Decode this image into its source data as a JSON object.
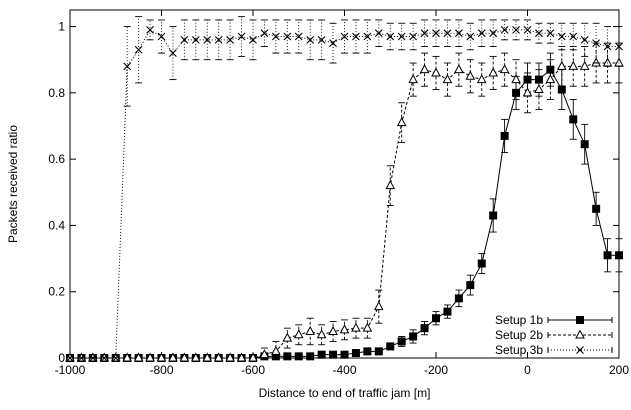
{
  "chart_data": {
    "type": "line",
    "title": "",
    "xlabel": "Distance to end of traffic jam [m]",
    "ylabel": "Packets received ratio",
    "xlim": [
      -1000,
      200
    ],
    "ylim": [
      0,
      1.05
    ],
    "xticks": [
      -1000,
      -800,
      -600,
      -400,
      -200,
      0,
      200
    ],
    "xtick_labels": [
      "-1000",
      "-800",
      "-600",
      "-400",
      "-200",
      "0",
      "200"
    ],
    "yticks": [
      0,
      0.2,
      0.4,
      0.6,
      0.8,
      1
    ],
    "ytick_labels": [
      "0",
      "0.2",
      "0.4",
      "0.6",
      "0.8",
      "1"
    ],
    "grid": false,
    "legend_position": "bottom-right",
    "series": [
      {
        "name": "Setup 1b",
        "marker": "filled-square",
        "line_style": "solid",
        "x": [
          -1000,
          -975,
          -950,
          -925,
          -900,
          -875,
          -850,
          -825,
          -800,
          -775,
          -750,
          -725,
          -700,
          -675,
          -650,
          -625,
          -600,
          -575,
          -550,
          -525,
          -500,
          -475,
          -450,
          -425,
          -400,
          -375,
          -350,
          -325,
          -300,
          -275,
          -250,
          -225,
          -200,
          -175,
          -150,
          -125,
          -100,
          -75,
          -50,
          -25,
          0,
          25,
          50,
          75,
          100,
          125,
          150,
          175,
          200
        ],
        "y": [
          0,
          0,
          0,
          0,
          0,
          0,
          0,
          0,
          0,
          0,
          0,
          0,
          0,
          0,
          0,
          0,
          0,
          0.005,
          0.005,
          0.005,
          0.005,
          0.005,
          0.01,
          0.01,
          0.01,
          0.015,
          0.02,
          0.02,
          0.035,
          0.05,
          0.065,
          0.09,
          0.12,
          0.14,
          0.18,
          0.22,
          0.285,
          0.43,
          0.67,
          0.8,
          0.84,
          0.84,
          0.87,
          0.81,
          0.72,
          0.645,
          0.45,
          0.31,
          0.31
        ],
        "err": [
          0,
          0,
          0,
          0,
          0,
          0,
          0,
          0,
          0,
          0,
          0,
          0,
          0,
          0,
          0,
          0,
          0,
          0.005,
          0.005,
          0.005,
          0.005,
          0.005,
          0.005,
          0.005,
          0.005,
          0.005,
          0.01,
          0.01,
          0.01,
          0.015,
          0.02,
          0.02,
          0.02,
          0.02,
          0.025,
          0.03,
          0.03,
          0.05,
          0.05,
          0.05,
          0.05,
          0.05,
          0.05,
          0.06,
          0.06,
          0.06,
          0.05,
          0.05,
          0.05
        ]
      },
      {
        "name": "Setup 2b",
        "marker": "open-triangle",
        "line_style": "dashed",
        "x": [
          -1000,
          -975,
          -950,
          -925,
          -900,
          -875,
          -850,
          -825,
          -800,
          -775,
          -750,
          -725,
          -700,
          -675,
          -650,
          -625,
          -600,
          -575,
          -550,
          -525,
          -500,
          -475,
          -450,
          -425,
          -400,
          -375,
          -350,
          -325,
          -300,
          -275,
          -250,
          -225,
          -200,
          -175,
          -150,
          -125,
          -100,
          -75,
          -50,
          -25,
          0,
          25,
          50,
          75,
          100,
          125,
          150,
          175,
          200
        ],
        "y": [
          0,
          0,
          0,
          0,
          0,
          0,
          0,
          0,
          0,
          0,
          0,
          0,
          0,
          0,
          0,
          0,
          0,
          0.01,
          0.02,
          0.06,
          0.07,
          0.08,
          0.07,
          0.08,
          0.085,
          0.09,
          0.09,
          0.155,
          0.52,
          0.71,
          0.84,
          0.87,
          0.86,
          0.84,
          0.87,
          0.85,
          0.84,
          0.86,
          0.87,
          0.84,
          0.8,
          0.81,
          0.84,
          0.88,
          0.88,
          0.88,
          0.89,
          0.89,
          0.89
        ],
        "err": [
          0,
          0,
          0,
          0,
          0,
          0,
          0,
          0,
          0,
          0,
          0,
          0,
          0,
          0,
          0,
          0,
          0,
          0.02,
          0.03,
          0.03,
          0.03,
          0.04,
          0.03,
          0.03,
          0.03,
          0.03,
          0.03,
          0.05,
          0.06,
          0.06,
          0.05,
          0.05,
          0.05,
          0.05,
          0.05,
          0.05,
          0.05,
          0.05,
          0.05,
          0.06,
          0.06,
          0.06,
          0.06,
          0.06,
          0.06,
          0.06,
          0.06,
          0.06,
          0.06
        ]
      },
      {
        "name": "Setup 3b",
        "marker": "cross",
        "line_style": "dotted",
        "x": [
          -1000,
          -975,
          -950,
          -925,
          -900,
          -875,
          -850,
          -825,
          -800,
          -775,
          -750,
          -725,
          -700,
          -675,
          -650,
          -625,
          -600,
          -575,
          -550,
          -525,
          -500,
          -475,
          -450,
          -425,
          -400,
          -375,
          -350,
          -325,
          -300,
          -275,
          -250,
          -225,
          -200,
          -175,
          -150,
          -125,
          -100,
          -75,
          -50,
          -25,
          0,
          25,
          50,
          75,
          100,
          125,
          150,
          175,
          200
        ],
        "y": [
          0,
          0,
          0,
          0,
          0,
          0.88,
          0.93,
          0.99,
          0.97,
          0.92,
          0.96,
          0.96,
          0.96,
          0.96,
          0.96,
          0.97,
          0.96,
          0.98,
          0.97,
          0.97,
          0.97,
          0.96,
          0.96,
          0.95,
          0.97,
          0.97,
          0.97,
          0.98,
          0.97,
          0.97,
          0.97,
          0.98,
          0.98,
          0.98,
          0.98,
          0.97,
          0.98,
          0.98,
          0.99,
          0.99,
          0.99,
          0.98,
          0.98,
          0.97,
          0.97,
          0.96,
          0.95,
          0.94,
          0.94
        ],
        "err": [
          0,
          0,
          0,
          0,
          0,
          0.12,
          0.1,
          0.03,
          0.05,
          0.08,
          0.06,
          0.06,
          0.06,
          0.06,
          0.06,
          0.06,
          0.06,
          0.04,
          0.05,
          0.05,
          0.05,
          0.06,
          0.06,
          0.06,
          0.05,
          0.05,
          0.05,
          0.04,
          0.04,
          0.04,
          0.04,
          0.04,
          0.04,
          0.04,
          0.04,
          0.04,
          0.04,
          0.04,
          0.03,
          0.03,
          0.03,
          0.03,
          0.03,
          0.04,
          0.04,
          0.05,
          0.06,
          0.06,
          0.06
        ]
      }
    ]
  }
}
